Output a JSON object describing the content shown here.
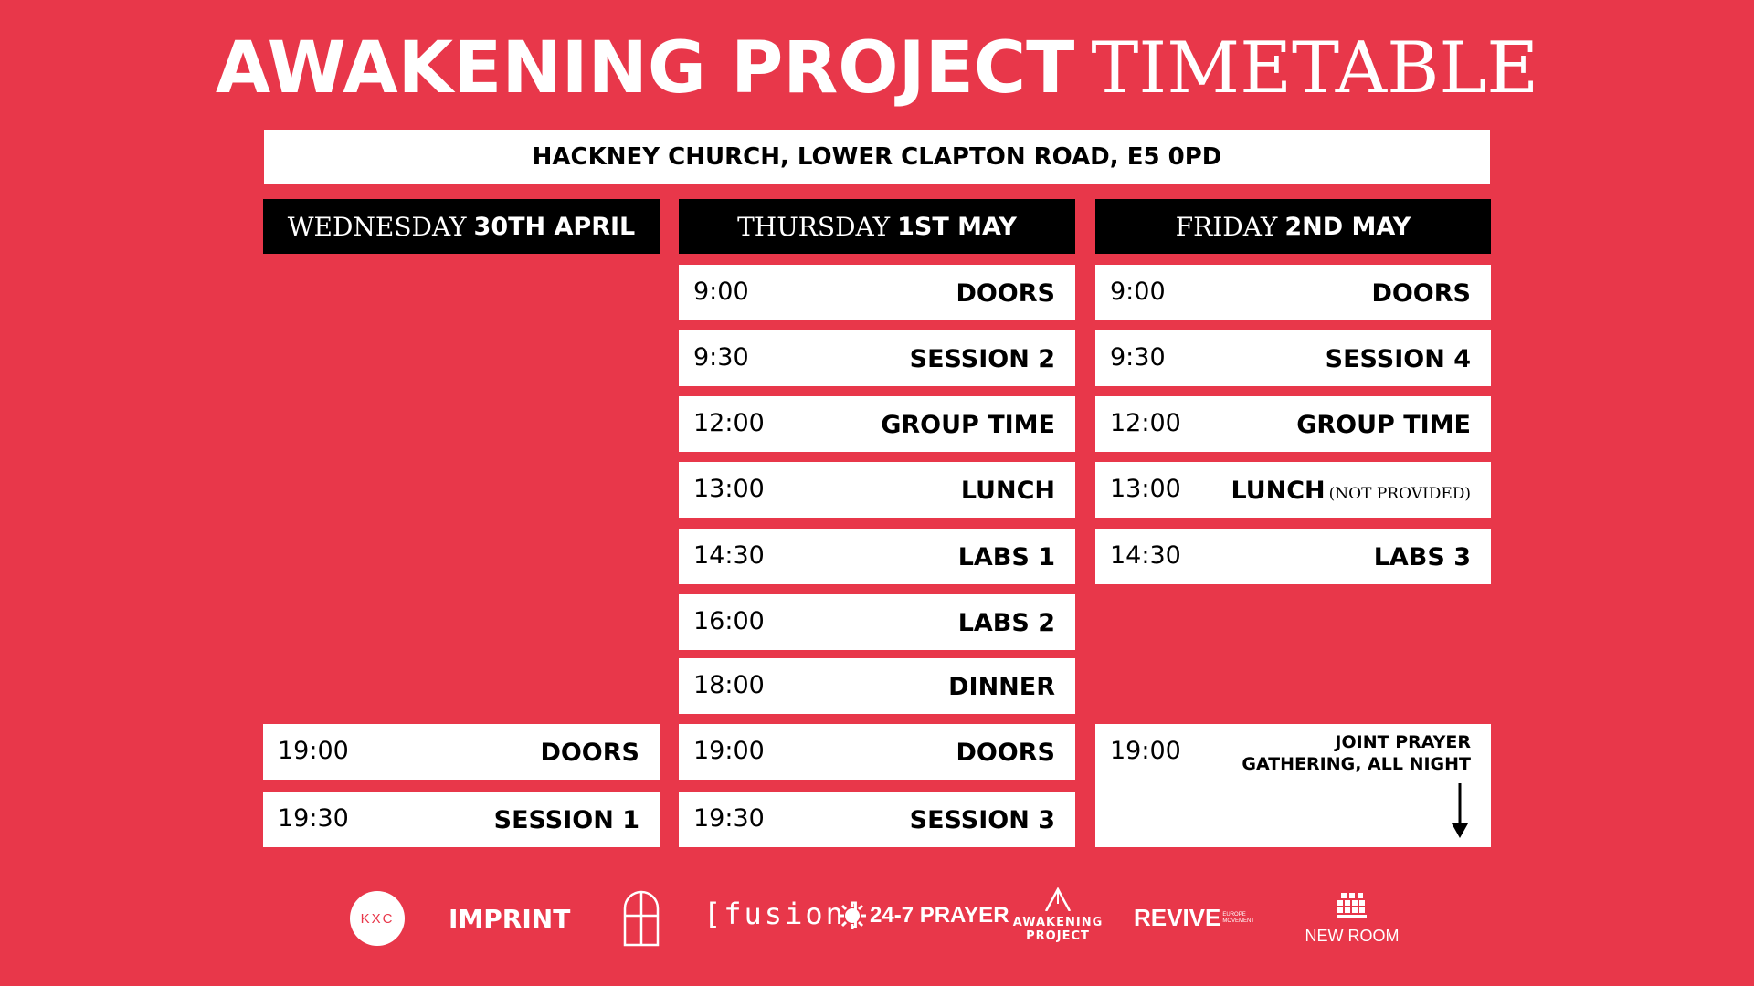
{
  "title": {
    "bold": "AWAKENING PROJECT",
    "serif": "TIMETABLE"
  },
  "venue": "HACKNEY CHURCH, LOWER CLAPTON ROAD, E5 0PD",
  "days": [
    {
      "name": "WEDNESDAY",
      "date": "30TH APRIL",
      "slots": [
        {
          "time": "19:00",
          "event": "DOORS"
        },
        {
          "time": "19:30",
          "event": "SESSION 1"
        }
      ]
    },
    {
      "name": "THURSDAY",
      "date": "1ST MAY",
      "slots": [
        {
          "time": "9:00",
          "event": "DOORS"
        },
        {
          "time": "9:30",
          "event": "SESSION 2"
        },
        {
          "time": "12:00",
          "event": "GROUP TIME"
        },
        {
          "time": "13:00",
          "event": "LUNCH"
        },
        {
          "time": "14:30",
          "event": "LABS 1"
        },
        {
          "time": "16:00",
          "event": "LABS 2"
        },
        {
          "time": "18:00",
          "event": "DINNER"
        },
        {
          "time": "19:00",
          "event": "DOORS"
        },
        {
          "time": "19:30",
          "event": "SESSION 3"
        }
      ]
    },
    {
      "name": "FRIDAY",
      "date": "2ND MAY",
      "slots": [
        {
          "time": "9:00",
          "event": "DOORS"
        },
        {
          "time": "9:30",
          "event": "SESSION 4"
        },
        {
          "time": "12:00",
          "event": "GROUP TIME"
        },
        {
          "time": "13:00",
          "event": "LUNCH",
          "note": "(NOT PROVIDED)"
        },
        {
          "time": "14:30",
          "event": "LABS 3"
        },
        {
          "time": "19:00",
          "event": "JOINT PRAYER GATHERING, ALL NIGHT"
        }
      ]
    }
  ],
  "logos": {
    "kxc": "KXC",
    "imprint": "IMPRINT",
    "fusion": "[fusion]",
    "prayer": "24-7 PRAYER",
    "awakening_line1": "AWAKENING",
    "awakening_line2": "PROJECT",
    "revive": "REVIVE",
    "revive_sub1": "EUROPE",
    "revive_sub2": "MOVEMENT",
    "newroom": "NEW ROOM"
  },
  "colors": {
    "background": "#e8374a",
    "panel": "#ffffff",
    "header": "#000000"
  }
}
